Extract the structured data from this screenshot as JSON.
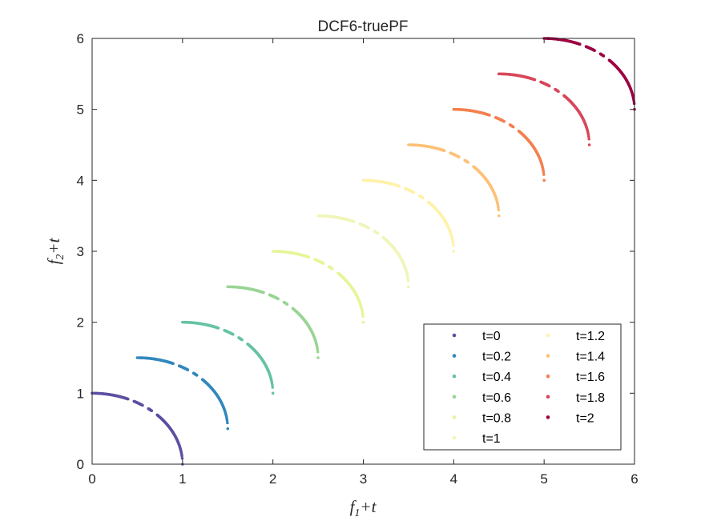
{
  "chart_data": {
    "type": "scatter",
    "title": "DCF6-truePF",
    "xlabel": {
      "var": "f",
      "sub": "1",
      "suffix": "+t"
    },
    "ylabel": {
      "var": "f",
      "sub": "2",
      "suffix": "+t"
    },
    "xlim": [
      0,
      6
    ],
    "ylim": [
      0,
      6
    ],
    "xticks": [
      0,
      1,
      2,
      3,
      4,
      5,
      6
    ],
    "yticks": [
      0,
      1,
      2,
      3,
      4,
      5,
      6
    ],
    "grid": false,
    "legend_position": "bottom-right",
    "legend_columns": 2,
    "front_shape": "quarter-circle arc of radius 1 starting at (t, 1+t), one per time step",
    "series": [
      {
        "name": "t=0",
        "t": 0,
        "color": "#5e4fa2"
      },
      {
        "name": "t=0.2",
        "t": 0.5,
        "color": "#3288bd"
      },
      {
        "name": "t=0.4",
        "t": 1,
        "color": "#66c2a5"
      },
      {
        "name": "t=0.6",
        "t": 1.5,
        "color": "#99d594"
      },
      {
        "name": "t=0.8",
        "t": 2,
        "color": "#e6f598"
      },
      {
        "name": "t=1",
        "t": 2.5,
        "color": "#f0f5b8"
      },
      {
        "name": "t=1.2",
        "t": 3,
        "color": "#fff2a8"
      },
      {
        "name": "t=1.4",
        "t": 3.5,
        "color": "#fdc177"
      },
      {
        "name": "t=1.6",
        "t": 4,
        "color": "#f4804f"
      },
      {
        "name": "t=1.8",
        "t": 4.5,
        "color": "#d7485a"
      },
      {
        "name": "t=2",
        "t": 5,
        "color": "#9e0142"
      }
    ]
  }
}
